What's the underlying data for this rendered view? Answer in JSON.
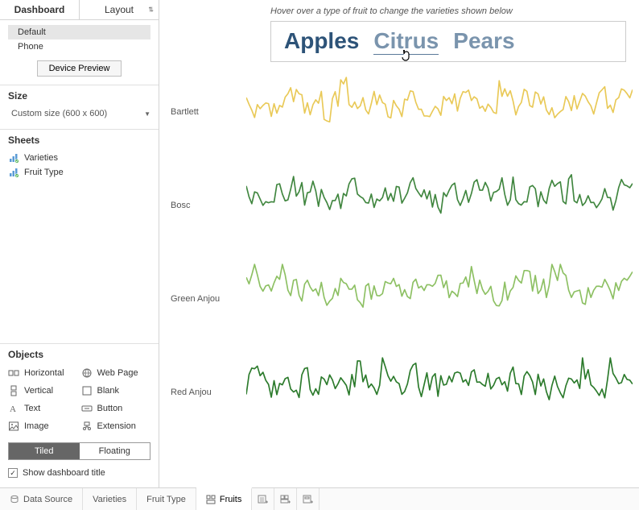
{
  "sidebar": {
    "tabs": {
      "dashboard": "Dashboard",
      "layout": "Layout"
    },
    "devices": {
      "default": "Default",
      "phone": "Phone",
      "preview_btn": "Device Preview"
    },
    "size": {
      "title": "Size",
      "value": "Custom size (600 x 600)"
    },
    "sheets": {
      "title": "Sheets",
      "items": [
        "Varieties",
        "Fruit Type"
      ]
    },
    "objects": {
      "title": "Objects",
      "items": [
        {
          "label": "Horizontal"
        },
        {
          "label": "Web Page"
        },
        {
          "label": "Vertical"
        },
        {
          "label": "Blank"
        },
        {
          "label": "Text"
        },
        {
          "label": "Button"
        },
        {
          "label": "Image"
        },
        {
          "label": "Extension"
        }
      ],
      "tiled": "Tiled",
      "floating": "Floating"
    },
    "show_title": "Show dashboard title"
  },
  "canvas": {
    "hint": "Hover over a type of fruit to change the varieties shown below",
    "fruits": {
      "apples": {
        "text": "Apples",
        "color": "#2d5378"
      },
      "citrus": {
        "text": "Citrus",
        "color": "#7a94ad"
      },
      "pears": {
        "text": "Pears",
        "color": "#7a94ad"
      }
    },
    "charts": [
      {
        "label": "Bartlett",
        "color": "#e9c957",
        "seed": 1
      },
      {
        "label": "Bosc",
        "color": "#40863f",
        "seed": 2
      },
      {
        "label": "Green Anjou",
        "color": "#8dc063",
        "seed": 3
      },
      {
        "label": "Red Anjou",
        "color": "#2b7a2b",
        "seed": 4
      }
    ],
    "line_width": 1.6,
    "points": 140,
    "amplitude": 0.55,
    "baseline": 0.65
  },
  "bottom": {
    "data_source": "Data Source",
    "tabs": [
      "Varieties",
      "Fruit Type",
      "Fruits"
    ],
    "active": 2
  }
}
